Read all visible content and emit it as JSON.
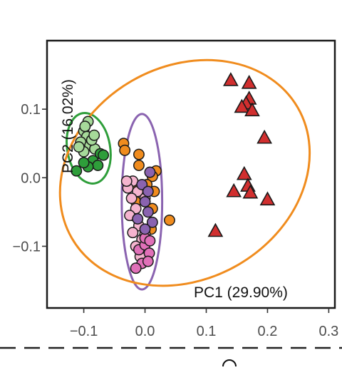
{
  "chart_data": {
    "type": "scatter",
    "title": "",
    "xlabel": "PC1 (29.90%)",
    "ylabel": "PC2 (16.02%)",
    "xlim": [
      -0.16,
      0.31
    ],
    "ylim": [
      -0.19,
      0.2
    ],
    "xticks": [
      -0.1,
      0.0,
      0.1,
      0.2,
      0.3
    ],
    "yticks": [
      -0.1,
      0.0,
      0.1
    ],
    "xtick_labels": [
      "−0.1",
      "0.0",
      "0.1",
      "0.2",
      "0.3"
    ],
    "ytick_labels": [
      "−0.1",
      "0.0",
      "0.1"
    ],
    "grid": false,
    "legend": "none",
    "series": [
      {
        "color": "#a6d99a",
        "marker": "circle",
        "points": [
          [
            -0.093,
            0.082
          ],
          [
            -0.1,
            0.068
          ],
          [
            -0.095,
            0.06
          ],
          [
            -0.105,
            0.052
          ],
          [
            -0.09,
            0.047
          ],
          [
            -0.082,
            0.042
          ],
          [
            -0.1,
            0.038
          ],
          [
            -0.108,
            0.045
          ],
          [
            -0.087,
            0.055
          ],
          [
            -0.083,
            0.062
          ],
          [
            -0.098,
            0.075
          ]
        ]
      },
      {
        "color": "#2e9e3a",
        "marker": "circle",
        "points": [
          [
            -0.073,
            0.035
          ],
          [
            -0.085,
            0.025
          ],
          [
            -0.077,
            0.018
          ],
          [
            -0.093,
            0.016
          ],
          [
            -0.112,
            0.01
          ],
          [
            -0.068,
            0.033
          ],
          [
            -0.1,
            0.022
          ]
        ]
      },
      {
        "color": "#f08c1e",
        "marker": "circle",
        "points": [
          [
            -0.035,
            0.05
          ],
          [
            -0.033,
            0.04
          ],
          [
            -0.01,
            0.034
          ],
          [
            -0.01,
            0.018
          ],
          [
            0.018,
            0.01
          ],
          [
            0.012,
            0.002
          ],
          [
            0.003,
            -0.01
          ],
          [
            0.015,
            -0.02
          ],
          [
            -0.02,
            -0.012
          ],
          [
            -0.015,
            -0.035
          ],
          [
            0.012,
            -0.045
          ],
          [
            0.04,
            -0.062
          ],
          [
            -0.02,
            -0.055
          ],
          [
            0.01,
            -0.075
          ]
        ]
      },
      {
        "color": "#f5b4cf",
        "marker": "circle",
        "points": [
          [
            -0.02,
            -0.005
          ],
          [
            -0.028,
            -0.015
          ],
          [
            -0.012,
            -0.02
          ],
          [
            -0.022,
            -0.03
          ],
          [
            -0.015,
            -0.045
          ],
          [
            -0.025,
            -0.055
          ],
          [
            -0.01,
            -0.07
          ],
          [
            -0.02,
            -0.08
          ],
          [
            -0.005,
            -0.09
          ],
          [
            -0.015,
            -0.1
          ],
          [
            -0.008,
            -0.115
          ],
          [
            0.0,
            -0.082
          ],
          [
            -0.03,
            -0.005
          ],
          [
            0.0,
            -0.03
          ]
        ]
      },
      {
        "color": "#e070b8",
        "marker": "circle",
        "points": [
          [
            -0.01,
            -0.105
          ],
          [
            0.0,
            -0.098
          ],
          [
            0.007,
            -0.11
          ],
          [
            -0.005,
            -0.125
          ],
          [
            0.005,
            -0.122
          ],
          [
            -0.015,
            -0.132
          ],
          [
            0.0,
            -0.088
          ],
          [
            0.008,
            -0.092
          ]
        ]
      },
      {
        "color": "#8a63b0",
        "marker": "circle",
        "points": [
          [
            -0.005,
            -0.01
          ],
          [
            0.005,
            -0.02
          ],
          [
            0.005,
            -0.05
          ],
          [
            0.0,
            -0.035
          ],
          [
            -0.012,
            -0.06
          ],
          [
            0.012,
            -0.065
          ],
          [
            0.0,
            -0.075
          ],
          [
            0.008,
            0.008
          ]
        ]
      },
      {
        "color": "#d12f2f",
        "marker": "triangle",
        "points": [
          [
            0.14,
            0.142
          ],
          [
            0.17,
            0.138
          ],
          [
            0.17,
            0.115
          ],
          [
            0.165,
            0.108
          ],
          [
            0.158,
            0.103
          ],
          [
            0.175,
            0.098
          ],
          [
            0.195,
            0.058
          ],
          [
            0.162,
            0.005
          ],
          [
            0.145,
            -0.02
          ],
          [
            0.168,
            -0.012
          ],
          [
            0.172,
            -0.022
          ],
          [
            0.2,
            -0.032
          ],
          [
            0.115,
            -0.078
          ]
        ]
      }
    ],
    "ellipses": [
      {
        "color": "#2e9e3a",
        "cx": -0.092,
        "cy": 0.043,
        "rx": 0.035,
        "ry": 0.052,
        "angle_deg": 10
      },
      {
        "color": "#8a63b0",
        "cx": -0.005,
        "cy": -0.035,
        "rx": 0.033,
        "ry": 0.128,
        "angle_deg": 0
      },
      {
        "color": "#f08c1e",
        "cx": 0.065,
        "cy": 0.007,
        "rx": 0.213,
        "ry": 0.155,
        "angle_deg": 30
      }
    ]
  }
}
